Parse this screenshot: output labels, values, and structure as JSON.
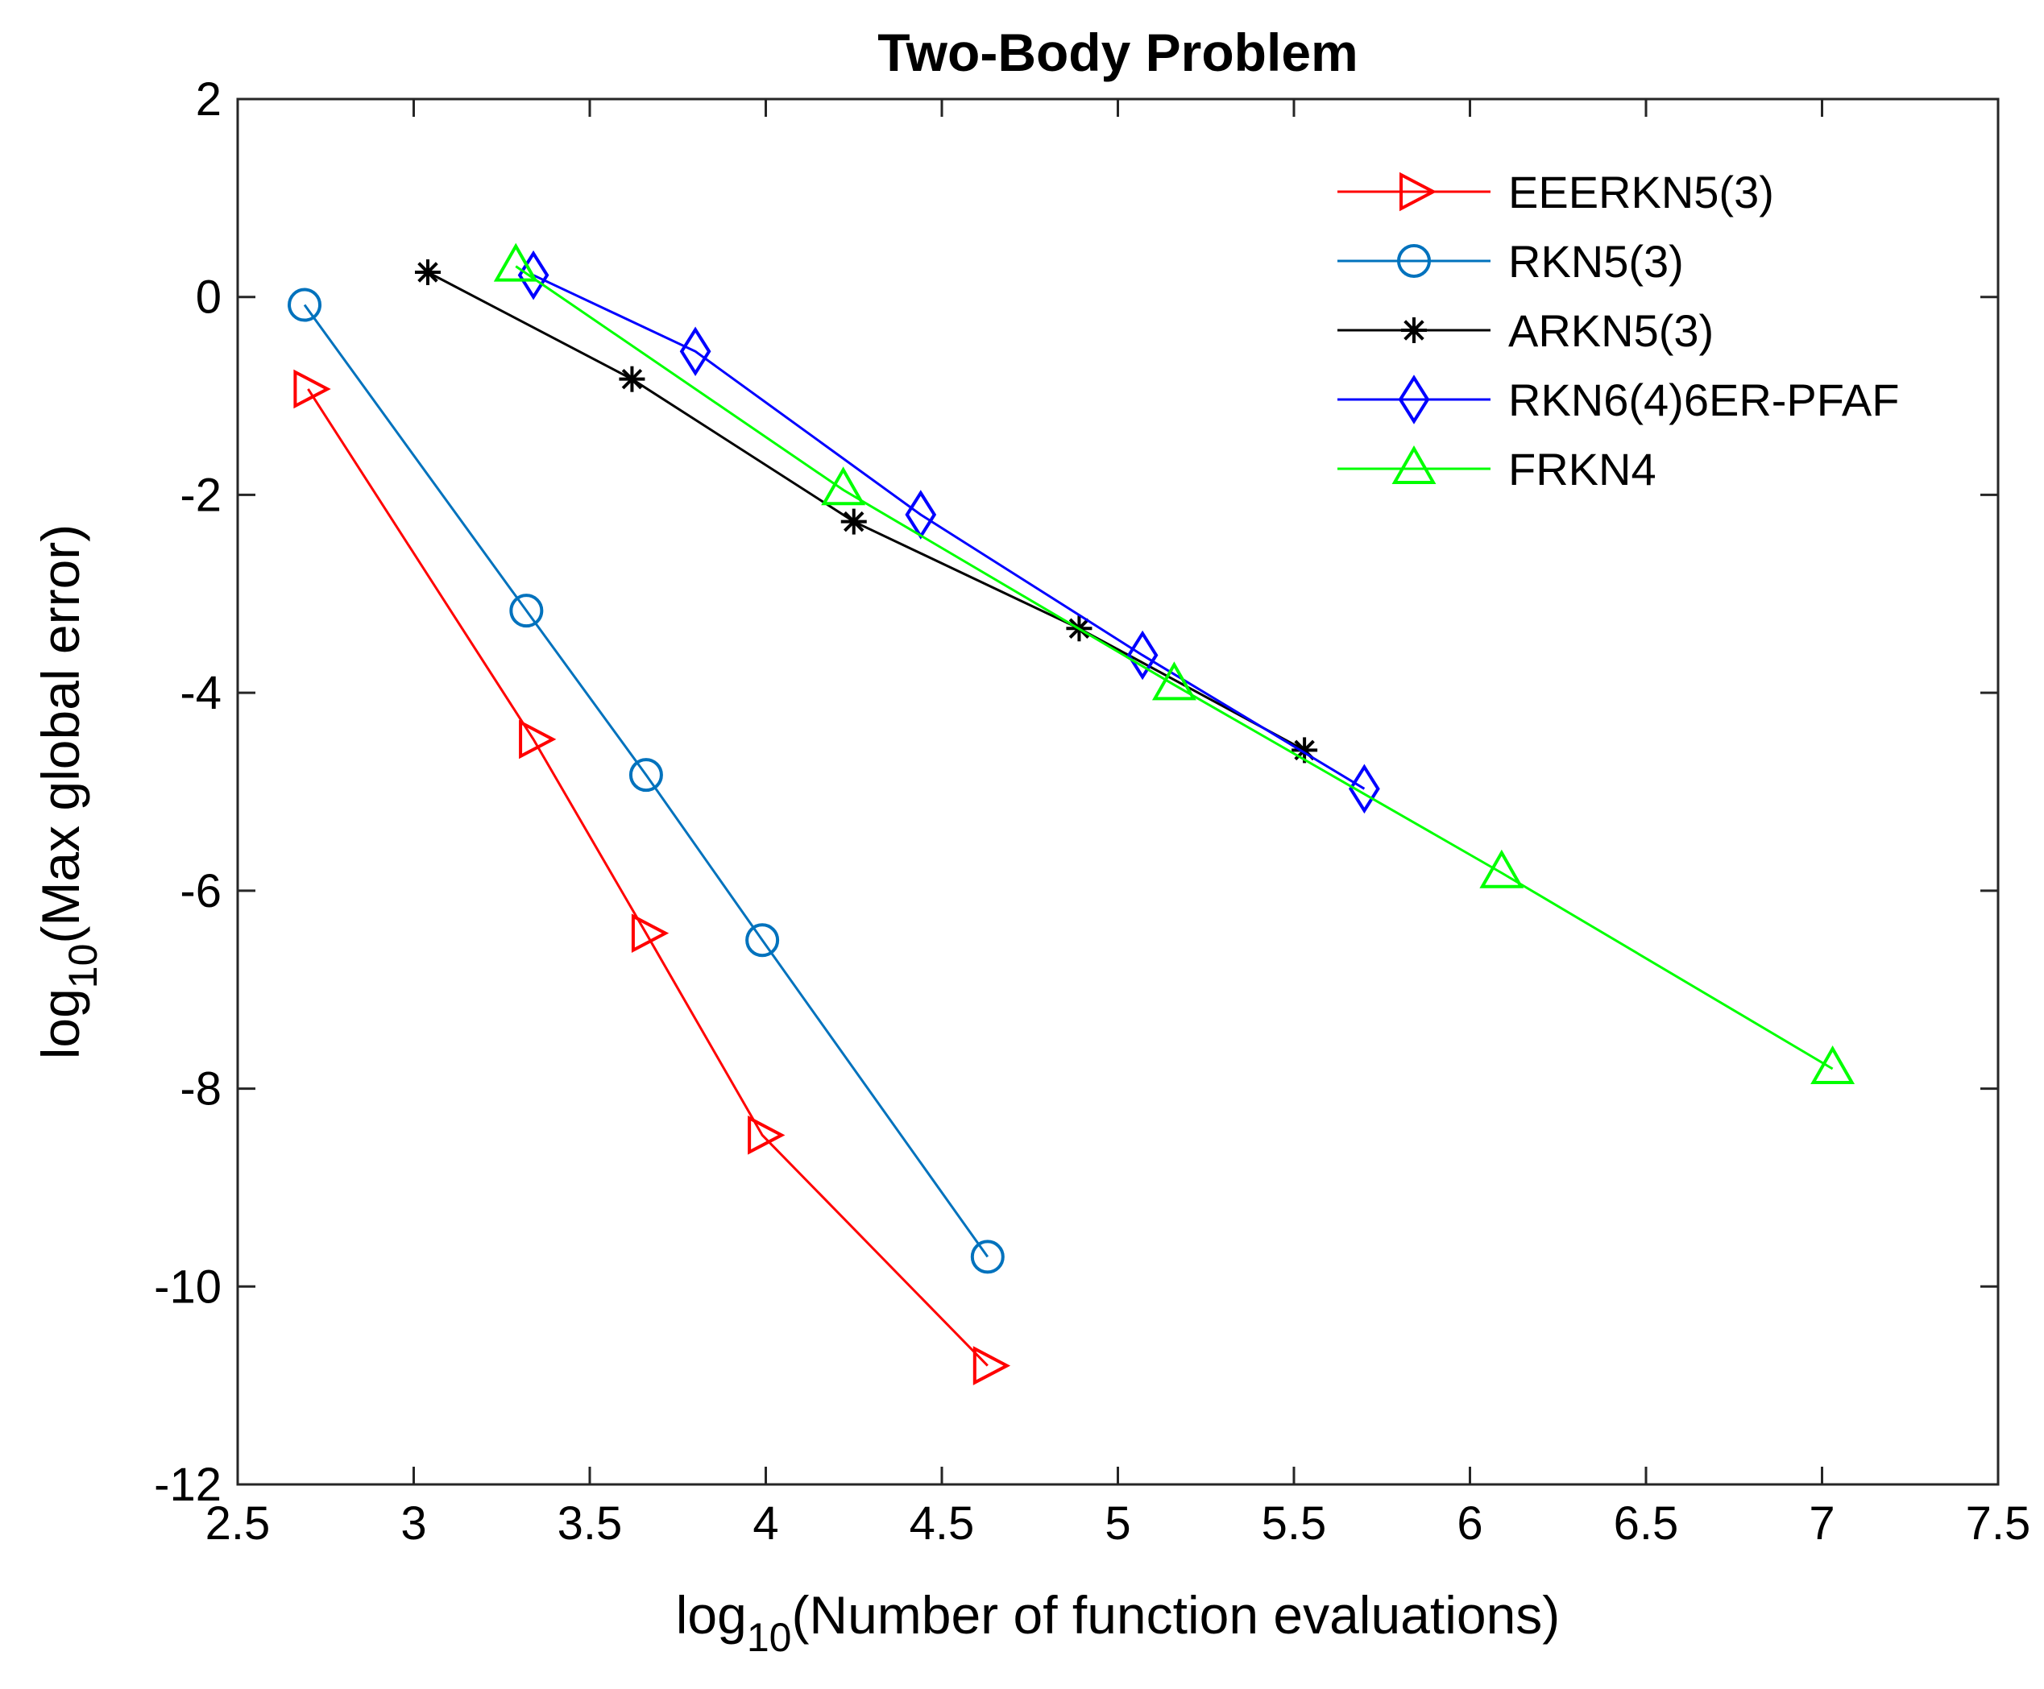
{
  "chart_data": {
    "type": "line",
    "title": "Two-Body Problem",
    "xlabel": {
      "prefix": "log",
      "subscript": "10",
      "suffix": "(Number of function evaluations)"
    },
    "ylabel": {
      "prefix": "log",
      "subscript": "10",
      "suffix": "(Max global error)"
    },
    "xlim": [
      2.5,
      7.5
    ],
    "ylim": [
      -12,
      2
    ],
    "xticks": [
      2.5,
      3,
      3.5,
      4,
      4.5,
      5,
      5.5,
      6,
      6.5,
      7,
      7.5
    ],
    "xtick_labels": [
      "2.5",
      "3",
      "3.5",
      "4",
      "4.5",
      "5",
      "5.5",
      "6",
      "6.5",
      "7",
      "7.5"
    ],
    "yticks": [
      2,
      0,
      -2,
      -4,
      -6,
      -8,
      -10,
      -12
    ],
    "ytick_labels": [
      "2",
      "0",
      "-2",
      "-4",
      "-6",
      "-8",
      "-10",
      "-12"
    ],
    "grid": false,
    "legend_position": "top-right",
    "series": [
      {
        "name": "EEERKN5(3)",
        "color": "#ff0000",
        "marker": "triangle-right",
        "x": [
          2.7,
          3.34,
          3.66,
          3.99,
          4.63
        ],
        "y": [
          -0.93,
          -4.47,
          -6.43,
          -8.47,
          -10.8
        ]
      },
      {
        "name": "RKN5(3)",
        "color": "#0072bd",
        "marker": "circle",
        "x": [
          2.69,
          3.32,
          3.66,
          3.99,
          4.63
        ],
        "y": [
          -0.08,
          -3.17,
          -4.83,
          -6.5,
          -9.7
        ]
      },
      {
        "name": "ARKN5(3)",
        "color": "#000000",
        "marker": "asterisk",
        "x": [
          3.04,
          3.62,
          4.25,
          4.89,
          5.53
        ],
        "y": [
          0.25,
          -0.83,
          -2.27,
          -3.35,
          -4.58
        ]
      },
      {
        "name": "RKN6(4)6ER-PFAF",
        "color": "#0000ff",
        "marker": "diamond",
        "x": [
          3.34,
          3.8,
          4.44,
          5.07,
          5.7
        ],
        "y": [
          0.22,
          -0.55,
          -2.2,
          -3.62,
          -4.97
        ]
      },
      {
        "name": "FRKN4",
        "color": "#00ff00",
        "marker": "triangle-up",
        "x": [
          3.29,
          4.22,
          5.16,
          6.09,
          7.03
        ],
        "y": [
          0.31,
          -1.95,
          -3.92,
          -5.82,
          -7.8
        ]
      }
    ]
  }
}
